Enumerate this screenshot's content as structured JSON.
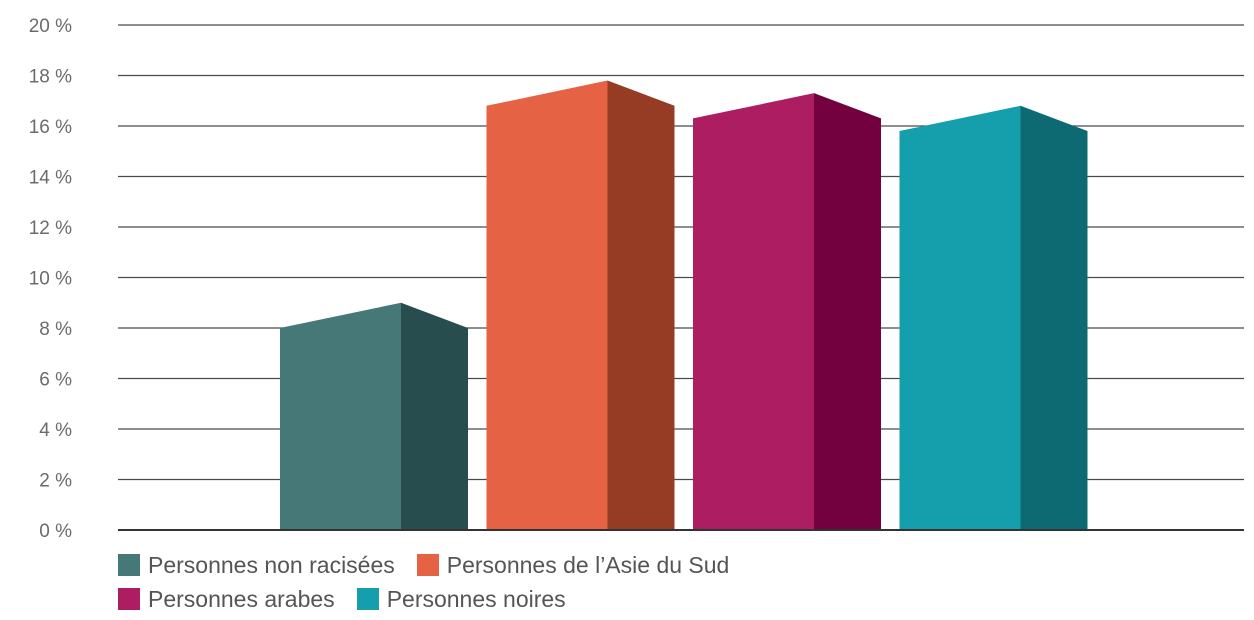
{
  "chart_data": {
    "type": "bar",
    "style": "3d-columns",
    "categories": [
      "Personnes non racisées",
      "Personnes de l’Asie du Sud",
      "Personnes arabes",
      "Personnes noires"
    ],
    "values": [
      8,
      16.8,
      16.3,
      15.8
    ],
    "colors": [
      {
        "front": "#477878",
        "side": "#274d4e"
      },
      {
        "front": "#e66244",
        "side": "#973c24"
      },
      {
        "front": "#ad1d62",
        "side": "#73003f"
      },
      {
        "front": "#159eab",
        "side": "#0d6a73"
      }
    ],
    "ylim": [
      0,
      20
    ],
    "yticks": [
      "0 %",
      "2 %",
      "4 %",
      "6 %",
      "8 %",
      "10 %",
      "12 %",
      "14 %",
      "16 %",
      "18 %",
      "20 %"
    ],
    "grid": true,
    "legend_position": "bottom-left",
    "title": "",
    "xlabel": "",
    "ylabel": ""
  },
  "legend": {
    "rows": [
      [
        {
          "label": "Personnes non racisées",
          "color": "#477878"
        },
        {
          "label": "Personnes de l’Asie du Sud",
          "color": "#e66244"
        }
      ],
      [
        {
          "label": "Personnes arabes",
          "color": "#ad1d62"
        },
        {
          "label": "Personnes noires",
          "color": "#159eab"
        }
      ]
    ]
  }
}
